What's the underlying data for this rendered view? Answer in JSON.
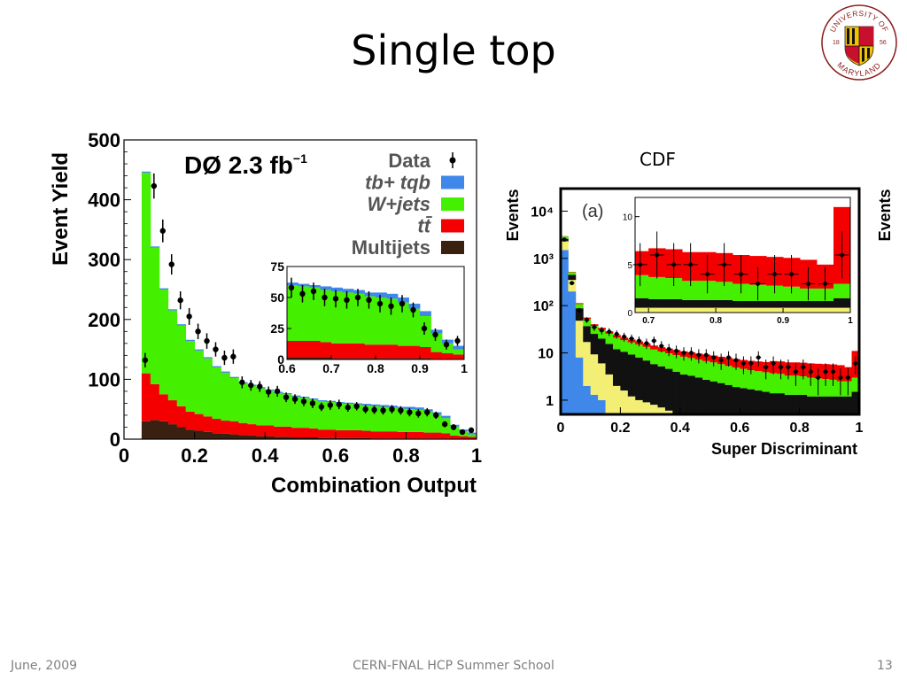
{
  "slide": {
    "title": "Single top",
    "footer_date": "June, 2009",
    "footer_event": "CERN-FNAL HCP Summer School",
    "page_number": "13",
    "logo": {
      "text_top": "UNIVERSITY OF",
      "text_bottom": "MARYLAND",
      "year_left": "18",
      "year_right": "56",
      "icon": "university-seal"
    }
  },
  "chart_data": [
    {
      "id": "d0",
      "type": "bar",
      "stacked": true,
      "experiment": "DØ",
      "luminosity": "2.3 fb",
      "luminosity_exp": "−1",
      "xlabel": "Combination Output",
      "ylabel": "Event Yield",
      "xlim": [
        0,
        1
      ],
      "ylim": [
        0,
        500
      ],
      "xticks": [
        "0",
        "0.2",
        "0.4",
        "0.6",
        "0.8",
        "1"
      ],
      "yticks": [
        "0",
        "100",
        "200",
        "300",
        "400",
        "500"
      ],
      "legend": {
        "placement": "top-right",
        "entries": [
          {
            "label": "Data",
            "marker": "point",
            "color": "#000000"
          },
          {
            "label": "tb+ tqb",
            "color": "#3f87e8"
          },
          {
            "label": "W+jets",
            "color": "#44f000"
          },
          {
            "label": "tt̄",
            "color": "#f50000"
          },
          {
            "label": "Multijets",
            "color": "#3a2010"
          }
        ]
      },
      "bin_edges": [
        0.05,
        0.075,
        0.1,
        0.125,
        0.15,
        0.175,
        0.2,
        0.225,
        0.25,
        0.275,
        0.3,
        0.325,
        0.35,
        0.375,
        0.4,
        0.425,
        0.45,
        0.475,
        0.5,
        0.525,
        0.55,
        0.575,
        0.6,
        0.625,
        0.65,
        0.675,
        0.7,
        0.725,
        0.75,
        0.775,
        0.8,
        0.825,
        0.85,
        0.875,
        0.9,
        0.925,
        0.95,
        0.975,
        1.0
      ],
      "series": [
        {
          "name": "Multijets",
          "color": "#3a2010",
          "values": [
            30,
            32,
            30,
            25,
            20,
            16,
            14,
            12,
            10,
            9,
            8,
            7,
            6,
            5,
            5,
            4,
            4,
            3,
            3,
            3,
            2,
            2,
            2,
            2,
            2,
            2,
            1,
            1,
            1,
            1,
            1,
            1,
            1,
            1,
            1,
            0,
            0,
            0
          ]
        },
        {
          "name": "tt̄",
          "color": "#f50000",
          "values": [
            80,
            60,
            45,
            40,
            35,
            30,
            28,
            26,
            24,
            22,
            22,
            20,
            19,
            18,
            18,
            17,
            17,
            16,
            16,
            15,
            14,
            14,
            13,
            13,
            13,
            12,
            12,
            12,
            12,
            11,
            11,
            11,
            10,
            10,
            9,
            6,
            5,
            4
          ]
        },
        {
          "name": "W+jets",
          "color": "#44f000",
          "values": [
            335,
            228,
            175,
            150,
            135,
            118,
            106,
            97,
            86,
            80,
            72,
            66,
            64,
            62,
            58,
            56,
            54,
            52,
            50,
            48,
            47,
            46,
            45,
            44,
            43,
            42,
            42,
            41,
            40,
            39,
            38,
            37,
            35,
            30,
            25,
            15,
            8,
            4
          ]
        },
        {
          "name": "tb+ tqb",
          "color": "#3f87e8",
          "values": [
            2,
            2,
            2,
            2,
            2,
            2,
            2,
            2,
            2,
            2,
            2,
            2,
            2,
            2,
            2,
            2,
            2,
            2,
            2,
            2,
            2,
            2,
            2,
            2,
            2,
            3,
            3,
            3,
            3,
            3,
            4,
            4,
            4,
            4,
            4,
            3,
            3,
            3
          ]
        }
      ],
      "data_points": {
        "x": [
          0.06,
          0.085,
          0.11,
          0.135,
          0.16,
          0.185,
          0.21,
          0.235,
          0.26,
          0.285,
          0.31,
          0.335,
          0.36,
          0.385,
          0.41,
          0.435,
          0.46,
          0.485,
          0.51,
          0.535,
          0.56,
          0.585,
          0.61,
          0.635,
          0.66,
          0.685,
          0.71,
          0.735,
          0.76,
          0.785,
          0.81,
          0.835,
          0.86,
          0.885,
          0.91,
          0.935,
          0.96,
          0.985
        ],
        "y": [
          132,
          423,
          348,
          292,
          232,
          205,
          180,
          164,
          150,
          136,
          138,
          95,
          90,
          88,
          79,
          80,
          70,
          67,
          63,
          60,
          54,
          57,
          58,
          53,
          55,
          50,
          49,
          48,
          50,
          48,
          45,
          43,
          45,
          40,
          25,
          20,
          12,
          15
        ],
        "err": [
          12,
          21,
          19,
          17,
          15,
          14,
          13,
          13,
          12,
          12,
          12,
          10,
          9,
          9,
          9,
          9,
          8,
          8,
          8,
          8,
          7,
          8,
          8,
          7,
          7,
          7,
          7,
          7,
          7,
          7,
          7,
          7,
          7,
          6,
          5,
          5,
          4,
          4
        ]
      },
      "inset": {
        "xlim": [
          0.6,
          1
        ],
        "ylim": [
          0,
          75
        ],
        "xticks": [
          "0.6",
          "0.7",
          "0.8",
          "0.9",
          "1"
        ],
        "yticks": [
          "0",
          "25",
          "50",
          "75"
        ]
      }
    },
    {
      "id": "cdf",
      "type": "bar",
      "stacked": true,
      "experiment": "CDF",
      "panel": "(a)",
      "xlabel": "Super Discriminant",
      "ylabel": "Events",
      "log_y": true,
      "xlim": [
        0,
        1
      ],
      "ylim": [
        0.5,
        30000
      ],
      "xticks": [
        "0",
        "0.2",
        "0.4",
        "0.6",
        "0.8",
        "1"
      ],
      "yticks_log": [
        {
          "label": "1",
          "value": 1
        },
        {
          "label": "10",
          "value": 10
        },
        {
          "label": "10²",
          "value": 100
        },
        {
          "label": "10³",
          "value": 1000
        },
        {
          "label": "10⁴",
          "value": 10000
        }
      ],
      "bin_edges": [
        0,
        0.025,
        0.05,
        0.075,
        0.1,
        0.125,
        0.15,
        0.175,
        0.2,
        0.225,
        0.25,
        0.275,
        0.3,
        0.325,
        0.35,
        0.375,
        0.4,
        0.425,
        0.45,
        0.475,
        0.5,
        0.525,
        0.55,
        0.575,
        0.6,
        0.625,
        0.65,
        0.675,
        0.7,
        0.725,
        0.75,
        0.775,
        0.8,
        0.825,
        0.85,
        0.875,
        0.9,
        0.925,
        0.95,
        0.975,
        1.0
      ],
      "series": [
        {
          "name": "blue",
          "color": "#3f87e8",
          "values": [
            1500,
            200,
            8,
            2,
            1.3,
            1,
            0.5,
            0,
            0,
            0,
            0,
            0,
            0,
            0,
            0,
            0,
            0,
            0,
            0,
            0,
            0,
            0,
            0,
            0,
            0,
            0,
            0,
            0,
            0,
            0,
            0,
            0,
            0,
            0,
            0,
            0,
            0,
            0,
            0,
            0
          ]
        },
        {
          "name": "yellow",
          "color": "#f2ef74",
          "values": [
            800,
            150,
            40,
            15,
            8,
            5,
            3,
            2,
            1.6,
            1.2,
            1,
            0.9,
            0.8,
            0.7,
            0.6,
            0.5,
            0.5,
            0.5,
            0.5,
            0.5,
            0.5,
            0.5,
            0.5,
            0.5,
            0.5,
            0.5,
            0.5,
            0.5,
            0.5,
            0.5,
            0.5,
            0.5,
            0.5,
            0.5,
            0.5,
            0.5,
            0.5,
            0.5,
            0.5,
            0.5
          ]
        },
        {
          "name": "black",
          "color": "#111111",
          "values": [
            300,
            100,
            40,
            20,
            16,
            14,
            12,
            10,
            9,
            8,
            7,
            6,
            5,
            4.5,
            4,
            3.5,
            3,
            2.8,
            2.5,
            2.2,
            2,
            1.8,
            1.6,
            1.4,
            1.3,
            1.2,
            1.1,
            1,
            0.9,
            0.9,
            0.8,
            0.8,
            0.8,
            0.7,
            0.7,
            0.7,
            0.7,
            0.7,
            0.7,
            1
          ]
        },
        {
          "name": "green",
          "color": "#44f000",
          "values": [
            300,
            60,
            20,
            15,
            12,
            11,
            10,
            9,
            8,
            7.5,
            7,
            6.5,
            6,
            5.5,
            5.2,
            5,
            4.8,
            4.5,
            4.2,
            4,
            3.8,
            3.5,
            3.2,
            3,
            2.8,
            2.6,
            2.5,
            2.4,
            2.3,
            2.2,
            2,
            2,
            1.9,
            1.8,
            1.7,
            1.6,
            1.5,
            1.3,
            1.3,
            1.5
          ]
        },
        {
          "name": "red",
          "color": "#f50000",
          "values": [
            50,
            10,
            5,
            4,
            3,
            3,
            3,
            3,
            2.5,
            2.5,
            2.5,
            2.5,
            2.5,
            2.5,
            2.5,
            2.5,
            2.5,
            2.5,
            2.5,
            2.5,
            2.5,
            2.5,
            2.5,
            2.5,
            2.5,
            2.5,
            2.5,
            2.5,
            3,
            3,
            3,
            3,
            3,
            3,
            3,
            3,
            3,
            3,
            2.5,
            8
          ]
        }
      ],
      "data_points": {
        "x": [
          0.0125,
          0.0375,
          0.0625,
          0.0875,
          0.1125,
          0.1375,
          0.1625,
          0.1875,
          0.2125,
          0.2375,
          0.2625,
          0.2875,
          0.3125,
          0.3375,
          0.3625,
          0.3875,
          0.4125,
          0.4375,
          0.4625,
          0.4875,
          0.5125,
          0.5375,
          0.5625,
          0.5875,
          0.6125,
          0.6375,
          0.6625,
          0.6875,
          0.7125,
          0.7375,
          0.7625,
          0.7875,
          0.8125,
          0.8375,
          0.8625,
          0.8875,
          0.9125,
          0.9375,
          0.9625,
          0.9875
        ],
        "y": [
          2500,
          300,
          80,
          50,
          35,
          30,
          28,
          25,
          22,
          20,
          18,
          16,
          18,
          14,
          12,
          11,
          10,
          10,
          9,
          9,
          8,
          7,
          8,
          7,
          6,
          6,
          8,
          5,
          6,
          5,
          5,
          4,
          5,
          4,
          3,
          4,
          4,
          3,
          3,
          6
        ]
      },
      "inset": {
        "xlim": [
          0.68,
          1
        ],
        "ylim": [
          0,
          12
        ],
        "xticks": [
          "0.7",
          "0.8",
          "0.9",
          "1"
        ],
        "yticks": [
          "0",
          "5",
          "10"
        ]
      }
    }
  ]
}
